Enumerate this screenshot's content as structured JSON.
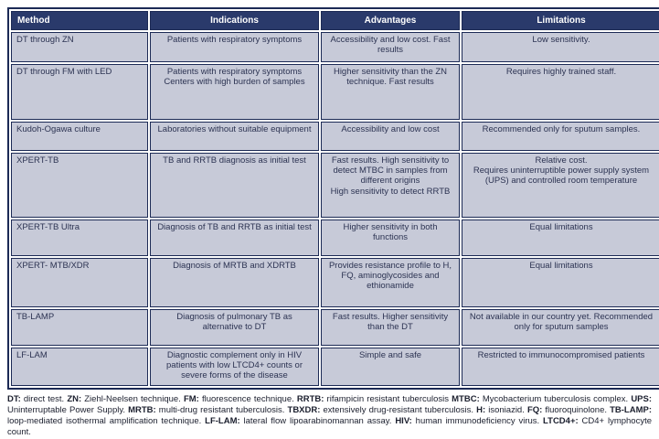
{
  "colors": {
    "header_bg": "#2a3a6b",
    "cell_bg": "#c7cad8",
    "border": "#1c2a55",
    "cell_text": "#2c3352",
    "footnote_text": "#1b1f2e",
    "page_bg": "#ffffff"
  },
  "table": {
    "columns": [
      {
        "label": "Method"
      },
      {
        "label": "Indications"
      },
      {
        "label": "Advantages"
      },
      {
        "label": "Limitations"
      }
    ],
    "rows": [
      {
        "method": "DT through ZN",
        "indications": "Patients with respiratory symptoms",
        "advantages": "Accessibility and low cost. Fast results",
        "limitations": "Low sensitivity."
      },
      {
        "method": "DT through FM with LED",
        "indications": "Patients with respiratory symptoms\nCenters with high burden of samples",
        "advantages": "Higher sensitivity than the ZN technique. Fast results",
        "limitations": "Requires highly trained staff."
      },
      {
        "method": "Kudoh-Ogawa culture",
        "indications": "Laboratories without suitable equipment",
        "advantages": "Accessibility and low cost",
        "limitations": "Recommended only for sputum samples."
      },
      {
        "method": "XPERT-TB",
        "indications": "TB and RRTB diagnosis as initial test",
        "advantages": "Fast results. High sensitivity to detect MTBC in samples from different origins\nHigh sensitivity to detect RRTB",
        "limitations": "Relative cost.\nRequires uninterruptible power supply system (UPS) and controlled room temperature"
      },
      {
        "method": "XPERT-TB Ultra",
        "indications": "Diagnosis of TB and RRTB as initial test",
        "advantages": "Higher sensitivity in both functions",
        "limitations": "Equal limitations"
      },
      {
        "method": "XPERT- MTB/XDR",
        "indications": "Diagnosis of MRTB and XDRTB",
        "advantages": "Provides resistance profile to H, FQ, aminoglycosides and ethionamide",
        "limitations": "Equal limitations"
      },
      {
        "method": "TB-LAMP",
        "indications": "Diagnosis of pulmonary TB as alternative to DT",
        "advantages": "Fast results. Higher sensitivity than the DT",
        "limitations": "Not available in our country yet. Recommended only for sputum samples"
      },
      {
        "method": "LF-LAM",
        "indications": "Diagnostic complement only in HIV patients with low LTCD4+ counts or severe forms of the disease",
        "advantages": "Simple and safe",
        "limitations": "Restricted to immunocompromised patients"
      }
    ]
  },
  "footnote": {
    "segments": [
      {
        "text": "DT:",
        "bold": true
      },
      {
        "text": " direct test. "
      },
      {
        "text": "ZN:",
        "bold": true
      },
      {
        "text": " Ziehl-Neelsen technique. "
      },
      {
        "text": "FM:",
        "bold": true
      },
      {
        "text": " fluorescence technique. "
      },
      {
        "text": "RRTB:",
        "bold": true
      },
      {
        "text": " rifampicin resistant tuberculosis "
      },
      {
        "text": "MTBC:",
        "bold": true
      },
      {
        "text": " Mycobacterium tuberculosis complex. "
      },
      {
        "text": "UPS:",
        "bold": true
      },
      {
        "text": " Uninterruptable Power Supply. "
      },
      {
        "text": "MRTB:",
        "bold": true
      },
      {
        "text": " multi-drug resistant tuberculosis. "
      },
      {
        "text": "TBXDR:",
        "bold": true
      },
      {
        "text": " extensively drug-resistant tuberculosis. "
      },
      {
        "text": "H:",
        "bold": true
      },
      {
        "text": " isoniazid. "
      },
      {
        "text": "FQ:",
        "bold": true
      },
      {
        "text": " fluoroquinolone. "
      },
      {
        "text": "TB-LAMP:",
        "bold": true
      },
      {
        "text": " loop-mediated isothermal amplification technique. "
      },
      {
        "text": "LF-LAM:",
        "bold": true
      },
      {
        "text": " lateral flow lipoarabinomannan assay. "
      },
      {
        "text": "HIV:",
        "bold": true
      },
      {
        "text": " human immunodeficiency virus. "
      },
      {
        "text": "LTCD4+:",
        "bold": true
      },
      {
        "text": " CD4+ lymphocyte count."
      }
    ]
  }
}
